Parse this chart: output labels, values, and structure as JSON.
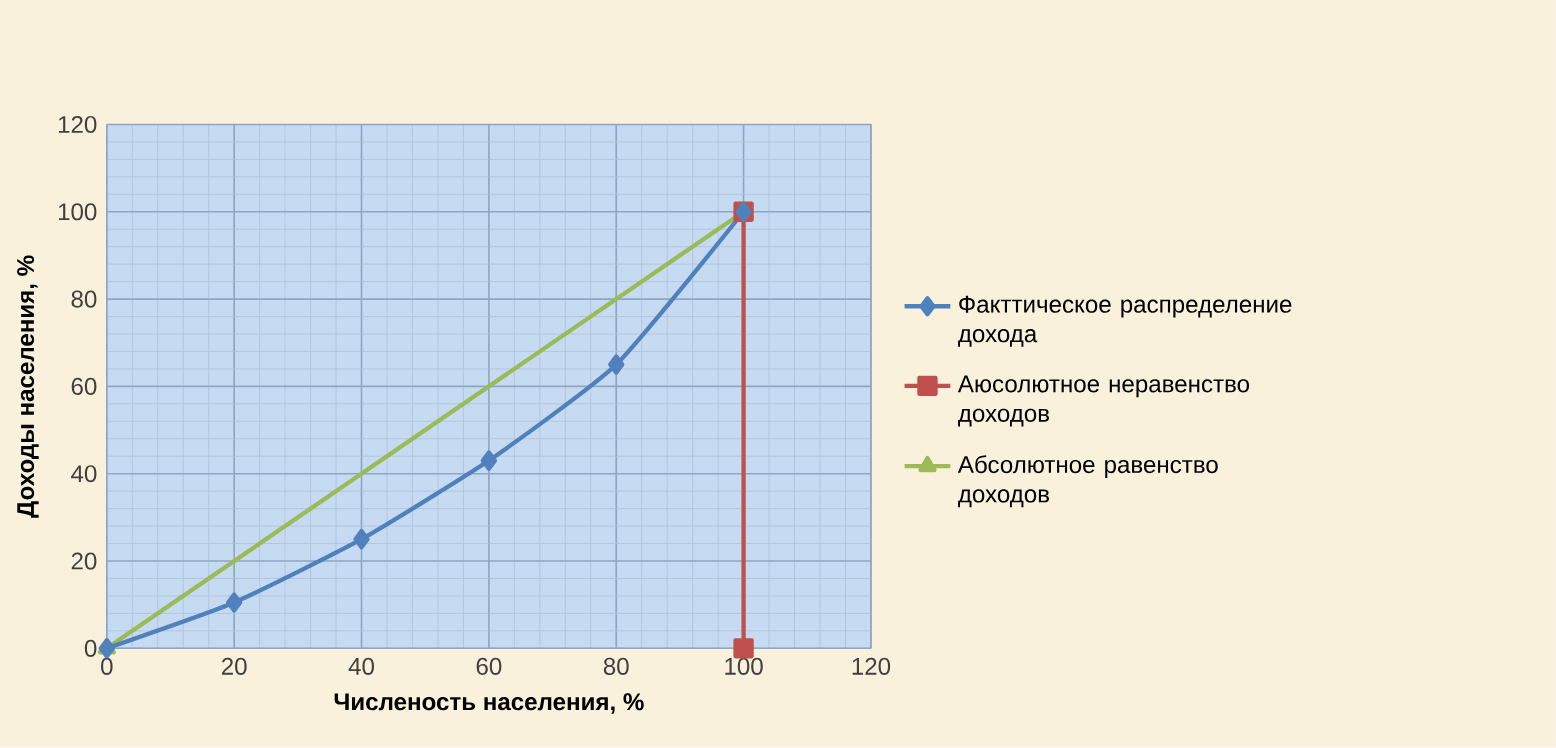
{
  "chart_data": {
    "type": "line",
    "xlabel": "Численость населения, %",
    "ylabel": "Доходы населения, %",
    "xlim": [
      0,
      120
    ],
    "xticks": [
      0,
      20,
      40,
      60,
      80,
      100,
      120
    ],
    "ylim": [
      0,
      120
    ],
    "yticks": [
      0,
      20,
      40,
      60,
      80,
      100,
      120
    ],
    "grid": true,
    "legend": "right",
    "series": [
      {
        "name": "Факттическое распределение дохода",
        "color": "#4f81bd",
        "marker": "diamond",
        "x": [
          0,
          20,
          40,
          60,
          80,
          100
        ],
        "values": [
          0,
          10.5,
          25,
          43,
          65,
          100
        ]
      },
      {
        "name": "Аюсолютное неравенство доходов",
        "color": "#c0504d",
        "marker": "square",
        "x": [
          100,
          100
        ],
        "values": [
          0,
          100
        ]
      },
      {
        "name": "Абсолютное равенство доходов",
        "color": "#9bbb59",
        "marker": "triangle",
        "x": [
          0,
          100
        ],
        "values": [
          0,
          100
        ]
      }
    ]
  }
}
